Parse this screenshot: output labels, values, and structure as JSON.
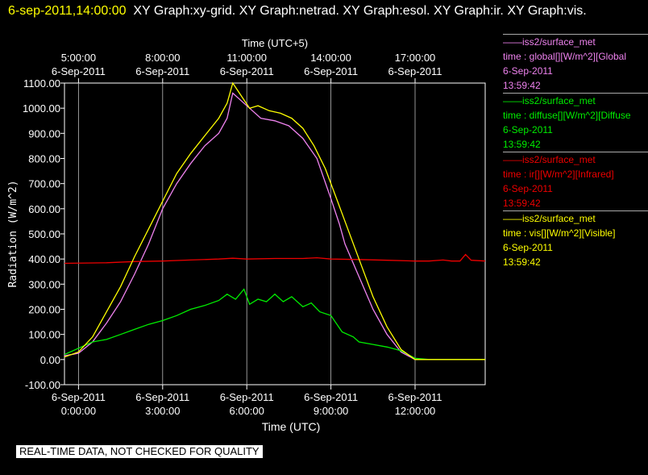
{
  "header": {
    "timestamp": "6-sep-2011,14:00:00",
    "graphs": "XY Graph:xy-grid.  XY Graph:netrad.  XY Graph:esol.  XY Graph:ir.  XY Graph:vis."
  },
  "banner": "REAL-TIME DATA, NOT CHECKED FOR QUALITY",
  "chart_data": {
    "type": "line",
    "title": "",
    "xlabel": "Time (UTC)",
    "x2label": "Time (UTC+5)",
    "ylabel": "Radiation (W/m^2)",
    "xlim": [
      -0.5,
      14.5
    ],
    "ylim": [
      -100,
      1100
    ],
    "y_ticks": [
      "1100.00",
      "1000.00",
      "900.00",
      "800.00",
      "700.00",
      "600.00",
      "500.00",
      "400.00",
      "300.00",
      "200.00",
      "100.00",
      "0.00",
      "-100.00"
    ],
    "x_ticks": [
      {
        "date": "6-Sep-2011",
        "time": "0:00:00"
      },
      {
        "date": "6-Sep-2011",
        "time": "3:00:00"
      },
      {
        "date": "6-Sep-2011",
        "time": "6:00:00"
      },
      {
        "date": "6-Sep-2011",
        "time": "9:00:00"
      },
      {
        "date": "6-Sep-2011",
        "time": "12:00:00"
      }
    ],
    "x2_ticks": [
      {
        "time": "5:00:00",
        "date": "6-Sep-2011"
      },
      {
        "time": "8:00:00",
        "date": "6-Sep-2011"
      },
      {
        "time": "11:00:00",
        "date": "6-Sep-2011"
      },
      {
        "time": "14:00:00",
        "date": "6-Sep-2011"
      },
      {
        "time": "17:00:00",
        "date": "6-Sep-2011"
      }
    ],
    "grid": true,
    "legend_position": "right",
    "series": [
      {
        "name": "iss2/surface_met",
        "label": "time : global[][W/m^2][Global",
        "date": "6-Sep-2011",
        "time": "13:59:42",
        "color": "#ee82ee",
        "points": [
          [
            -0.5,
            15
          ],
          [
            0,
            25
          ],
          [
            0.5,
            70
          ],
          [
            1,
            145
          ],
          [
            1.5,
            230
          ],
          [
            2,
            340
          ],
          [
            2.5,
            460
          ],
          [
            3,
            600
          ],
          [
            3.5,
            700
          ],
          [
            4,
            780
          ],
          [
            4.5,
            850
          ],
          [
            5,
            900
          ],
          [
            5.3,
            960
          ],
          [
            5.5,
            1060
          ],
          [
            5.8,
            1030
          ],
          [
            6.2,
            990
          ],
          [
            6.5,
            960
          ],
          [
            7,
            950
          ],
          [
            7.5,
            930
          ],
          [
            8,
            880
          ],
          [
            8.5,
            800
          ],
          [
            9,
            640
          ],
          [
            9.3,
            540
          ],
          [
            9.5,
            460
          ],
          [
            10,
            330
          ],
          [
            10.5,
            200
          ],
          [
            11,
            100
          ],
          [
            11.5,
            30
          ],
          [
            12,
            0
          ],
          [
            12.5,
            0
          ],
          [
            13,
            0
          ],
          [
            13.5,
            0
          ],
          [
            14,
            0
          ],
          [
            14.5,
            0
          ]
        ]
      },
      {
        "name": "iss2/surface_met",
        "label": "time : diffuse[][W/m^2][Diffuse",
        "date": "6-Sep-2011",
        "time": "13:59:42",
        "color": "#00ee00",
        "points": [
          [
            -0.5,
            20
          ],
          [
            0,
            45
          ],
          [
            0.5,
            70
          ],
          [
            1,
            80
          ],
          [
            1.5,
            100
          ],
          [
            2,
            120
          ],
          [
            2.5,
            140
          ],
          [
            3,
            155
          ],
          [
            3.5,
            175
          ],
          [
            4,
            200
          ],
          [
            4.5,
            215
          ],
          [
            5,
            235
          ],
          [
            5.3,
            260
          ],
          [
            5.6,
            240
          ],
          [
            5.9,
            280
          ],
          [
            6.1,
            220
          ],
          [
            6.4,
            240
          ],
          [
            6.7,
            230
          ],
          [
            7,
            260
          ],
          [
            7.3,
            230
          ],
          [
            7.6,
            250
          ],
          [
            8,
            210
          ],
          [
            8.3,
            225
          ],
          [
            8.6,
            190
          ],
          [
            9,
            175
          ],
          [
            9.4,
            110
          ],
          [
            9.8,
            90
          ],
          [
            10,
            70
          ],
          [
            10.5,
            60
          ],
          [
            11,
            50
          ],
          [
            11.5,
            35
          ],
          [
            12,
            5
          ],
          [
            12.5,
            0
          ],
          [
            13,
            0
          ],
          [
            14,
            0
          ],
          [
            14.5,
            0
          ]
        ]
      },
      {
        "name": "iss2/surface_met",
        "label": "time : ir[][W/m^2][Infrared]",
        "date": "6-Sep-2011",
        "time": "13:59:42",
        "color": "#ee0000",
        "points": [
          [
            -0.5,
            383
          ],
          [
            1,
            385
          ],
          [
            2,
            390
          ],
          [
            3,
            392
          ],
          [
            4,
            396
          ],
          [
            5,
            400
          ],
          [
            5.5,
            403
          ],
          [
            6,
            400
          ],
          [
            7,
            402
          ],
          [
            8,
            402
          ],
          [
            8.5,
            405
          ],
          [
            9,
            400
          ],
          [
            10,
            398
          ],
          [
            11,
            395
          ],
          [
            12,
            392
          ],
          [
            12.5,
            392
          ],
          [
            13,
            396
          ],
          [
            13.3,
            392
          ],
          [
            13.6,
            392
          ],
          [
            13.8,
            418
          ],
          [
            14,
            395
          ],
          [
            14.5,
            392
          ]
        ]
      },
      {
        "name": "iss2/surface_met",
        "label": "time : vis[][W/m^2][Visible]",
        "date": "6-Sep-2011",
        "time": "13:59:42",
        "color": "#ffff00",
        "points": [
          [
            -0.5,
            10
          ],
          [
            0,
            30
          ],
          [
            0.5,
            90
          ],
          [
            1,
            190
          ],
          [
            1.5,
            290
          ],
          [
            2,
            410
          ],
          [
            2.5,
            520
          ],
          [
            3,
            630
          ],
          [
            3.5,
            740
          ],
          [
            4,
            820
          ],
          [
            4.5,
            890
          ],
          [
            5,
            960
          ],
          [
            5.3,
            1020
          ],
          [
            5.5,
            1100
          ],
          [
            5.8,
            1050
          ],
          [
            6.1,
            1000
          ],
          [
            6.4,
            1010
          ],
          [
            6.8,
            990
          ],
          [
            7.2,
            980
          ],
          [
            7.6,
            960
          ],
          [
            8,
            920
          ],
          [
            8.4,
            850
          ],
          [
            8.8,
            760
          ],
          [
            9.2,
            640
          ],
          [
            9.6,
            520
          ],
          [
            10,
            400
          ],
          [
            10.5,
            250
          ],
          [
            11,
            130
          ],
          [
            11.5,
            40
          ],
          [
            12,
            0
          ],
          [
            12.5,
            0
          ],
          [
            13,
            0
          ],
          [
            14,
            0
          ],
          [
            14.5,
            0
          ]
        ]
      }
    ]
  }
}
